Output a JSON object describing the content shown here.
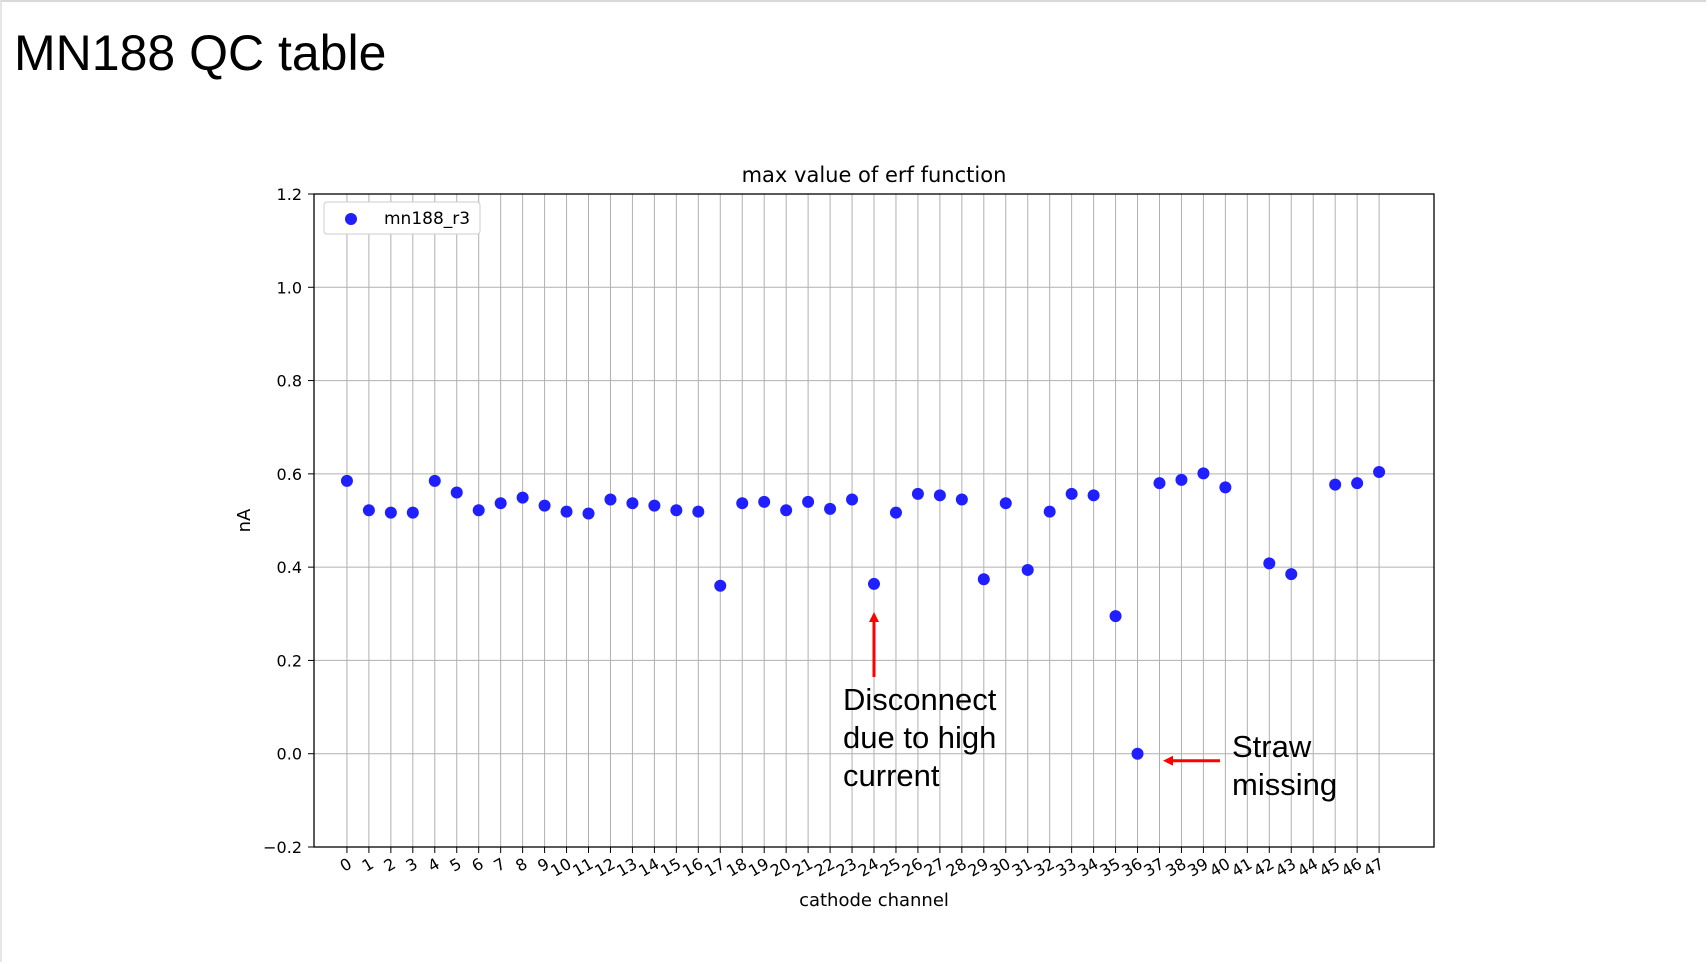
{
  "slide": {
    "title": "MN188 QC table"
  },
  "chart_data": {
    "type": "scatter",
    "title": "max value of erf function",
    "xlabel": "cathode channel",
    "ylabel": "nA",
    "ylim": [
      -0.2,
      1.2
    ],
    "yticks": [
      -0.2,
      0.0,
      0.2,
      0.4,
      0.6,
      0.8,
      1.0,
      1.2
    ],
    "ytick_labels": [
      "−0.2",
      "0.0",
      "0.2",
      "0.4",
      "0.6",
      "0.8",
      "1.0",
      "1.2"
    ],
    "xlim": [
      -1.5,
      49.5
    ],
    "grid": true,
    "legend": {
      "placement": "top-left",
      "entries": [
        "mn188_r3"
      ]
    },
    "series": [
      {
        "name": "mn188_r3",
        "color": "#1f1fff",
        "x": [
          0,
          1,
          2,
          3,
          4,
          5,
          6,
          7,
          8,
          9,
          10,
          11,
          12,
          13,
          14,
          15,
          16,
          17,
          18,
          19,
          20,
          21,
          22,
          23,
          24,
          25,
          26,
          27,
          28,
          29,
          30,
          31,
          32,
          33,
          34,
          35,
          36,
          37,
          38,
          39,
          40,
          41,
          42,
          43,
          44,
          45,
          46,
          47
        ],
        "y": [
          0.585,
          0.522,
          0.517,
          0.517,
          0.585,
          0.56,
          0.522,
          0.537,
          0.549,
          0.532,
          0.519,
          0.515,
          0.545,
          0.537,
          0.532,
          0.522,
          0.519,
          0.36,
          0.537,
          0.54,
          0.522,
          0.54,
          0.525,
          0.545,
          0.364,
          0.517,
          0.557,
          0.554,
          0.545,
          0.374,
          0.537,
          0.394,
          0.519,
          0.557,
          0.554,
          0.295,
          0.0,
          0.58,
          0.587,
          0.601,
          0.571,
          null,
          0.408,
          0.385,
          null,
          0.577,
          0.58,
          0.604
        ]
      }
    ],
    "annotations": [
      {
        "text": [
          "Disconnect",
          "due to high",
          "current"
        ],
        "target_x": 24,
        "target_y": 0.364,
        "arrow_color": "#ff0000"
      },
      {
        "text": [
          "Straw",
          "missing"
        ],
        "target_x": 36,
        "target_y": 0.0,
        "arrow_color": "#ff0000"
      }
    ]
  }
}
